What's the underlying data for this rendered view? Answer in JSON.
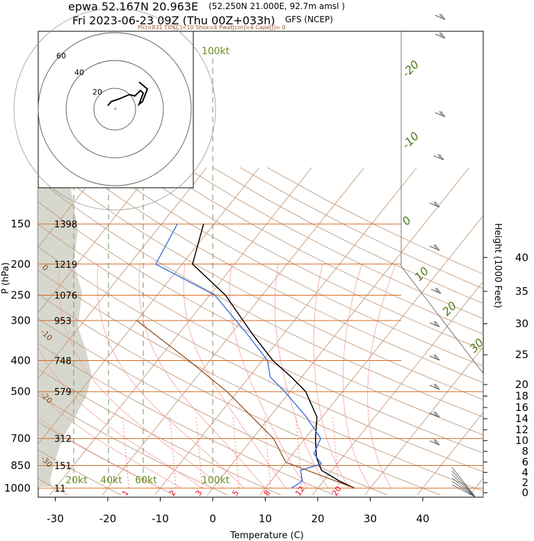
{
  "header": {
    "station": "epwa 52.167N 20.963E",
    "grid_point": "(52.250N 21.000E,  92.7m amsl )",
    "valid": "Fri 2023-06-23 09Z (Thu 00Z+033h)",
    "model": "GFS (NCEP)",
    "params": "Plcl=831 Tlcl[C]=10 Shox=4 Pwat[cm]=4 Cape[J]= 0"
  },
  "colors": {
    "temperature": "#000000",
    "dewpoint": "#3a6fd8",
    "parcel": "#8b4513",
    "isobar": "#d2691e",
    "isotherm": "#c49a7a",
    "mixing_ratio": "#ff6b6b",
    "moist_adiabat": "#f4a0a0",
    "theta_label": "#4f7a1a",
    "terrain": "#d6d8ce"
  },
  "chart_data": {
    "type": "line",
    "title": "epwa 52.167N 20.963E",
    "xlabel": "Temperature (C)",
    "ylabel": "P (hPa)",
    "y2label": "Height (1000 Feet)",
    "xlim": [
      -33,
      46
    ],
    "x_ticks": [
      "-30",
      "-20",
      "-10",
      "0",
      "10",
      "20",
      "30",
      "40"
    ],
    "pressure_levels": [
      {
        "p": 150,
        "height_m": "1398"
      },
      {
        "p": 200,
        "height_m": "1219"
      },
      {
        "p": 250,
        "height_m": "1076"
      },
      {
        "p": 300,
        "height_m": "953"
      },
      {
        "p": 400,
        "height_m": "748"
      },
      {
        "p": 500,
        "height_m": "579"
      },
      {
        "p": 700,
        "height_m": "312"
      },
      {
        "p": 850,
        "height_m": "151"
      },
      {
        "p": 1000,
        "height_m": "11"
      }
    ],
    "height_ticks_kft": [
      "0",
      "2",
      "4",
      "6",
      "8",
      "10",
      "12",
      "14",
      "16",
      "18",
      "20",
      "25",
      "30",
      "35",
      "40"
    ],
    "series": [
      {
        "key": "temperature",
        "points": [
          [
            27,
            1000
          ],
          [
            23,
            950
          ],
          [
            18,
            880
          ],
          [
            15,
            800
          ],
          [
            12,
            700
          ],
          [
            9,
            600
          ],
          [
            3,
            500
          ],
          [
            -2,
            450
          ],
          [
            -8,
            400
          ],
          [
            -16,
            330
          ],
          [
            -27,
            250
          ],
          [
            -38,
            200
          ],
          [
            -42,
            150
          ]
        ]
      },
      {
        "key": "dewpoint",
        "points": [
          [
            15,
            1000
          ],
          [
            16,
            950
          ],
          [
            14,
            880
          ],
          [
            17,
            840
          ],
          [
            14,
            780
          ],
          [
            13,
            700
          ],
          [
            7,
            600
          ],
          [
            -1,
            500
          ],
          [
            -6,
            450
          ],
          [
            -9,
            400
          ],
          [
            -17,
            330
          ],
          [
            -29,
            250
          ],
          [
            -45,
            200
          ],
          [
            -47,
            150
          ]
        ]
      },
      {
        "key": "parcel",
        "points": [
          [
            27,
            1000
          ],
          [
            10,
            831
          ],
          [
            4,
            700
          ],
          [
            -12,
            500
          ],
          [
            -24,
            400
          ],
          [
            -40,
            300
          ]
        ]
      }
    ],
    "isobar_labels": [
      "150",
      "200",
      "250",
      "300",
      "400",
      "500",
      "700",
      "850",
      "1000"
    ],
    "mixing_ratio_labels": [
      {
        "w": "1",
        "t": -16
      },
      {
        "w": "2",
        "t": -7
      },
      {
        "w": "3",
        "t": -2
      },
      {
        "w": "5",
        "t": 5
      },
      {
        "w": "8",
        "t": 11
      },
      {
        "w": "12",
        "t": 17
      },
      {
        "w": "20",
        "t": 24
      }
    ],
    "theta_labels": [
      "-20",
      "-10",
      "0",
      "10",
      "20",
      "30"
    ],
    "skew_temp_labels": [
      "30",
      "0",
      "-10",
      "-20",
      "-30",
      "-10"
    ],
    "wind_rings_kt": [
      "20kt",
      "40kt",
      "60kt",
      "100kt"
    ],
    "hodograph_rings": [
      "20",
      "40",
      "60"
    ]
  }
}
